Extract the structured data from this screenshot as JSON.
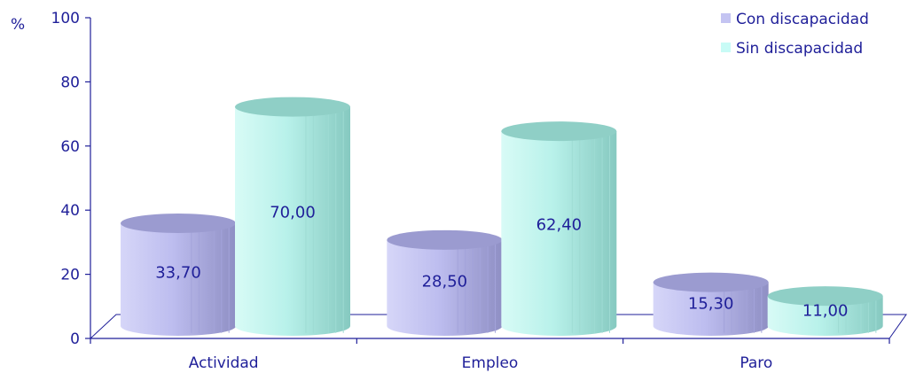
{
  "chart_data": {
    "type": "bar",
    "ylabel": "%",
    "ylim": [
      0,
      100
    ],
    "yticks": [
      0,
      20,
      40,
      60,
      80,
      100
    ],
    "categories": [
      "Actividad",
      "Empleo",
      "Paro"
    ],
    "series": [
      {
        "name": "Con discapacidad",
        "values": [
          33.7,
          28.5,
          15.3
        ],
        "labels": [
          "33,70",
          "28,50",
          "15,30"
        ],
        "color": "#b7b7ee"
      },
      {
        "name": "Sin discapacidad",
        "values": [
          70.0,
          62.4,
          11.0
        ],
        "labels": [
          "70,00",
          "62,40",
          "11,00"
        ],
        "color": "#b3f0ea"
      }
    ],
    "legend_position": "top-right",
    "grid": false
  }
}
